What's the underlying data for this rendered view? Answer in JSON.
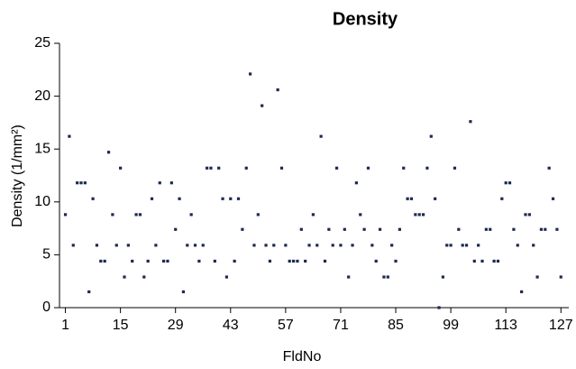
{
  "chart_data": {
    "type": "scatter",
    "title": "Density",
    "x_label": "FldNo",
    "y_label": "Density (1/mm²)",
    "x": [
      1,
      2,
      3,
      4,
      5,
      6,
      7,
      8,
      9,
      10,
      11,
      12,
      13,
      14,
      15,
      16,
      17,
      18,
      19,
      20,
      21,
      22,
      23,
      24,
      25,
      26,
      27,
      28,
      29,
      30,
      31,
      32,
      33,
      34,
      35,
      36,
      37,
      38,
      39,
      40,
      41,
      42,
      43,
      44,
      45,
      46,
      47,
      48,
      49,
      50,
      51,
      52,
      53,
      54,
      55,
      56,
      57,
      58,
      59,
      60,
      61,
      62,
      63,
      64,
      65,
      66,
      67,
      68,
      69,
      70,
      71,
      72,
      73,
      74,
      75,
      76,
      77,
      78,
      79,
      80,
      81,
      82,
      83,
      84,
      85,
      86,
      87,
      88,
      89,
      90,
      91,
      92,
      93,
      94,
      95,
      96,
      97,
      98,
      99,
      100,
      101,
      102,
      103,
      104,
      105,
      106,
      107,
      108,
      109,
      110,
      111,
      112,
      113,
      114,
      115,
      116,
      117,
      118,
      119,
      120,
      121,
      122,
      123,
      124,
      125,
      126,
      127
    ],
    "values": [
      8.8,
      16.2,
      5.9,
      11.8,
      11.8,
      11.8,
      1.5,
      10.3,
      5.9,
      4.4,
      4.4,
      14.7,
      8.8,
      5.9,
      13.2,
      2.9,
      5.9,
      4.4,
      8.8,
      8.8,
      2.9,
      4.4,
      10.3,
      5.9,
      11.8,
      4.4,
      4.4,
      11.8,
      7.4,
      10.3,
      1.5,
      5.9,
      8.8,
      5.9,
      4.4,
      5.9,
      13.2,
      13.2,
      4.4,
      13.2,
      10.3,
      2.9,
      10.3,
      4.4,
      10.3,
      7.4,
      13.2,
      22.1,
      5.9,
      8.8,
      19.1,
      5.9,
      4.4,
      5.9,
      20.6,
      13.2,
      5.9,
      4.4,
      4.4,
      4.4,
      7.4,
      4.4,
      5.9,
      8.8,
      5.9,
      16.2,
      4.4,
      7.4,
      5.9,
      13.2,
      5.9,
      7.4,
      2.9,
      5.9,
      11.8,
      8.8,
      7.4,
      13.2,
      5.9,
      4.4,
      7.4,
      2.9,
      2.9,
      5.9,
      4.4,
      7.4,
      13.2,
      10.3,
      10.3,
      8.8,
      8.8,
      8.8,
      13.2,
      16.2,
      10.3,
      0,
      2.9,
      5.9,
      5.9,
      13.2,
      7.4,
      5.9,
      5.9,
      17.6,
      4.4,
      5.9,
      4.4,
      7.4,
      7.4,
      4.4,
      4.4,
      10.3,
      11.8,
      11.8,
      7.4,
      5.9,
      1.5,
      8.8,
      8.8,
      5.9,
      2.9,
      7.4,
      7.4,
      13.2,
      10.3,
      7.4,
      2.9
    ],
    "color": "#1c2a52",
    "xlim": [
      -0.5,
      129
    ],
    "xticks": [
      1,
      15,
      29,
      43,
      57,
      71,
      85,
      99,
      113,
      127
    ],
    "ylim": [
      0,
      25
    ],
    "yticks": [
      0,
      5,
      10,
      15,
      20,
      25
    ]
  }
}
